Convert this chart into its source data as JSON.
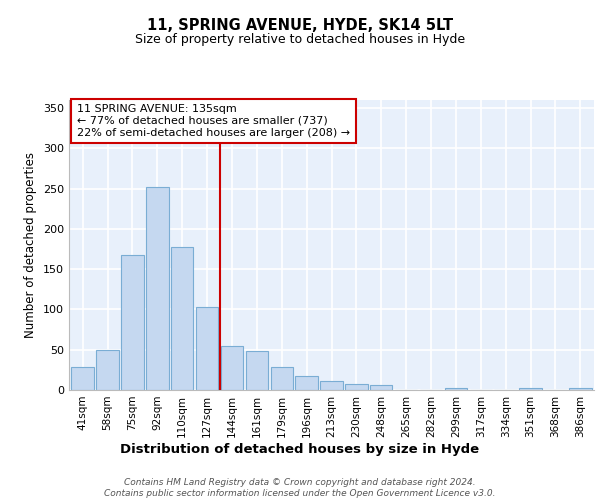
{
  "title1": "11, SPRING AVENUE, HYDE, SK14 5LT",
  "title2": "Size of property relative to detached houses in Hyde",
  "xlabel": "Distribution of detached houses by size in Hyde",
  "ylabel": "Number of detached properties",
  "categories": [
    "41sqm",
    "58sqm",
    "75sqm",
    "92sqm",
    "110sqm",
    "127sqm",
    "144sqm",
    "161sqm",
    "179sqm",
    "196sqm",
    "213sqm",
    "230sqm",
    "248sqm",
    "265sqm",
    "282sqm",
    "299sqm",
    "317sqm",
    "334sqm",
    "351sqm",
    "368sqm",
    "386sqm"
  ],
  "values": [
    29,
    50,
    168,
    252,
    178,
    103,
    55,
    48,
    29,
    17,
    11,
    8,
    6,
    0,
    0,
    2,
    0,
    0,
    2,
    0,
    2
  ],
  "bar_color": "#c5d8f0",
  "bar_edge_color": "#7aadd4",
  "bg_color": "#e8f0fb",
  "grid_color": "#ffffff",
  "vline_x": 6,
  "vline_color": "#cc0000",
  "annotation_text": "11 SPRING AVENUE: 135sqm\n← 77% of detached houses are smaller (737)\n22% of semi-detached houses are larger (208) →",
  "annotation_box_color": "#ffffff",
  "annotation_box_edge": "#cc0000",
  "footer": "Contains HM Land Registry data © Crown copyright and database right 2024.\nContains public sector information licensed under the Open Government Licence v3.0.",
  "ylim": [
    0,
    360
  ],
  "yticks": [
    0,
    50,
    100,
    150,
    200,
    250,
    300,
    350
  ]
}
